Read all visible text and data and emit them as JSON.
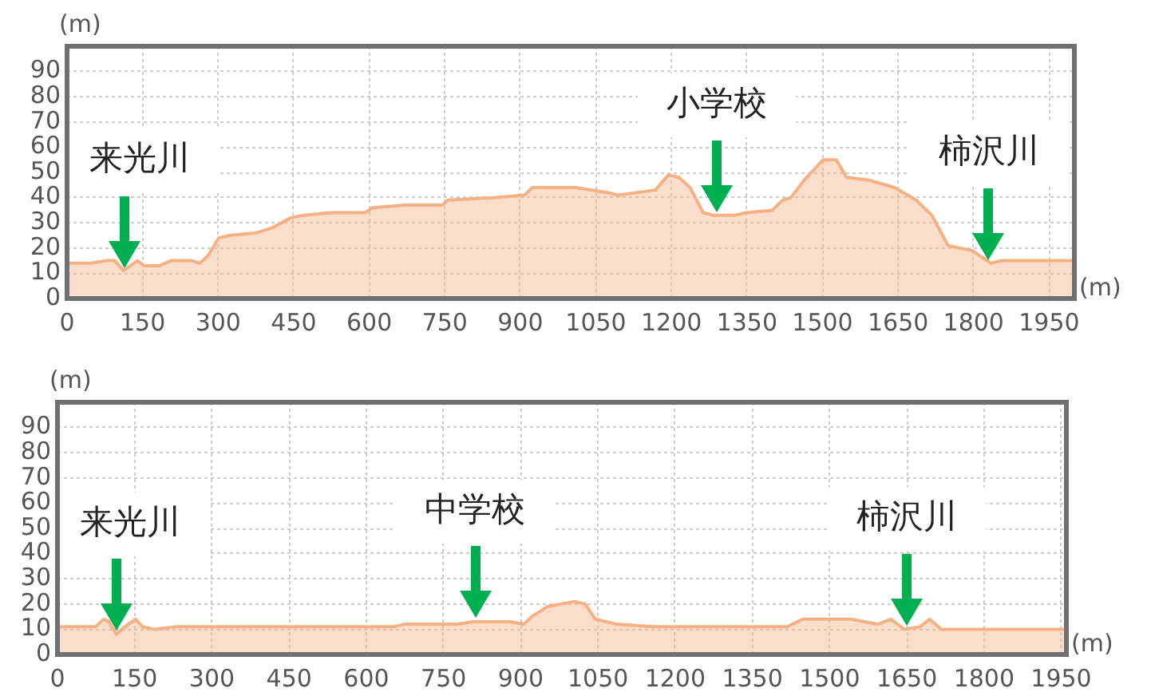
{
  "chart_data": [
    {
      "type": "area",
      "xlabel": "(m)",
      "ylabel": "(m)",
      "xlim": [
        0,
        2000
      ],
      "ylim": [
        0,
        100
      ],
      "xticks": [
        0,
        150,
        300,
        450,
        600,
        750,
        900,
        1050,
        1200,
        1350,
        1500,
        1650,
        1800,
        1950
      ],
      "yticks": [
        0,
        10,
        20,
        30,
        40,
        50,
        60,
        70,
        80,
        90
      ],
      "grid": true,
      "color": "#f4b183",
      "x": [
        0,
        47,
        79,
        95,
        112,
        126,
        140,
        153,
        184,
        206,
        248,
        264,
        280,
        301,
        322,
        375,
        407,
        444,
        470,
        523,
        591,
        607,
        671,
        745,
        756,
        850,
        908,
        924,
        1009,
        1073,
        1094,
        1168,
        1194,
        1215,
        1237,
        1263,
        1284,
        1326,
        1348,
        1400,
        1421,
        1437,
        1464,
        1501,
        1527,
        1548,
        1591,
        1643,
        1686,
        1717,
        1749,
        1797,
        1834,
        1855,
        1929,
        2000
      ],
      "values": [
        14,
        14,
        15,
        15,
        11,
        13,
        15,
        13,
        13,
        15,
        15,
        14,
        17,
        24,
        25,
        26,
        28,
        32,
        33,
        34,
        34,
        36,
        37,
        37,
        39,
        40,
        41,
        44,
        44,
        42,
        41,
        43,
        49,
        48,
        44,
        34,
        33,
        33,
        34,
        35,
        39,
        40,
        47,
        55,
        55,
        48,
        47,
        44,
        39,
        33,
        21,
        19,
        14,
        15,
        15,
        15
      ],
      "annotations": [
        {
          "text": "来光川",
          "x": 115,
          "y": 11
        },
        {
          "text": "小学校",
          "x": 1290,
          "y": 33
        },
        {
          "text": "柿沢川",
          "x": 1830,
          "y": 14
        }
      ]
    },
    {
      "type": "area",
      "xlabel": "(m)",
      "ylabel": "(m)",
      "xlim": [
        0,
        1960
      ],
      "ylim": [
        0,
        100
      ],
      "xticks": [
        0,
        150,
        300,
        450,
        600,
        750,
        900,
        1050,
        1200,
        1350,
        1500,
        1650,
        1800,
        1950
      ],
      "yticks": [
        0,
        10,
        20,
        30,
        40,
        50,
        60,
        70,
        80,
        90
      ],
      "grid": true,
      "color": "#f4b183",
      "x": [
        0,
        74,
        90,
        100,
        114,
        131,
        152,
        165,
        188,
        229,
        302,
        405,
        508,
        653,
        674,
        777,
        808,
        880,
        906,
        921,
        952,
        1004,
        1025,
        1045,
        1087,
        1159,
        1314,
        1417,
        1448,
        1541,
        1593,
        1619,
        1645,
        1676,
        1694,
        1717,
        1831,
        1960
      ],
      "values": [
        11,
        11,
        14,
        13,
        8,
        11,
        14,
        11,
        10,
        11,
        11,
        11,
        11,
        11,
        12,
        12,
        13,
        13,
        12,
        15,
        19,
        21,
        20,
        14,
        12,
        11,
        11,
        11,
        14,
        14,
        12,
        14,
        10,
        11,
        14,
        10,
        10,
        10
      ],
      "annotations": [
        {
          "text": "来光川",
          "x": 114,
          "y": 8
        },
        {
          "text": "中学校",
          "x": 811,
          "y": 13
        },
        {
          "text": "柿沢川",
          "x": 1650,
          "y": 10
        }
      ]
    }
  ]
}
